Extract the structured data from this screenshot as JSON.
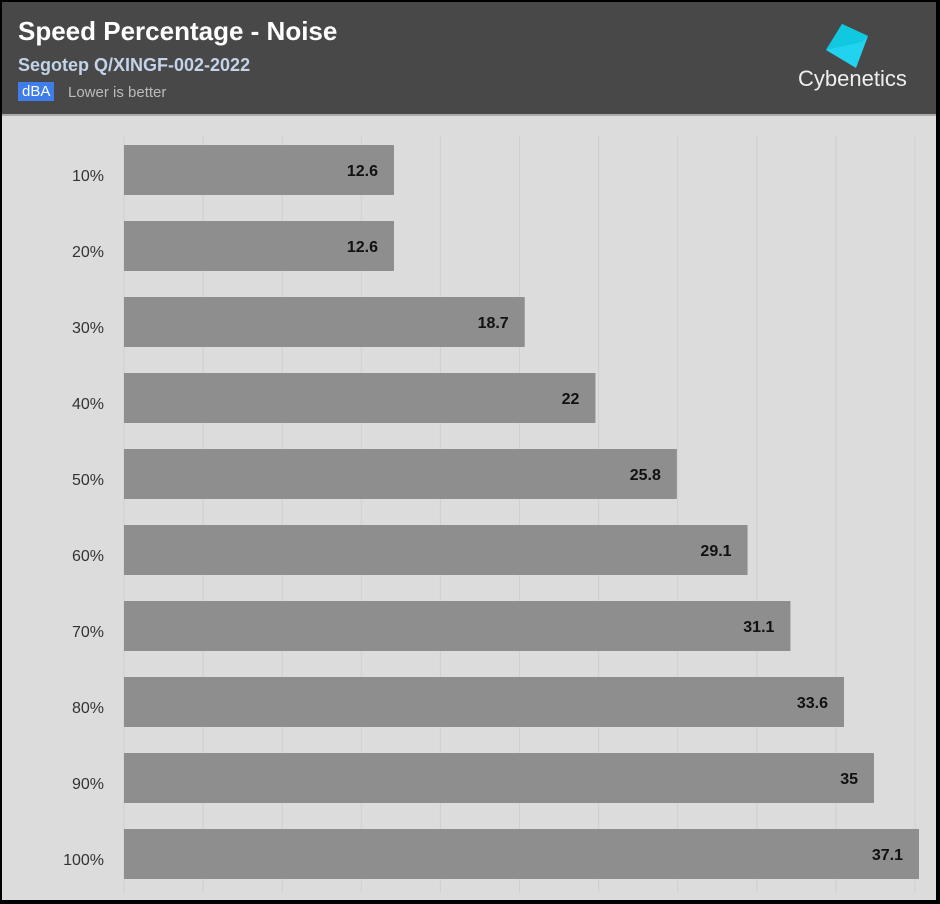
{
  "header": {
    "title": "Speed Percentage - Noise",
    "subtitle": "Segotep Q/XINGF-002-2022",
    "unit_badge": "dBA",
    "note": "Lower is better",
    "logo_text": "Cybenetics"
  },
  "colors": {
    "header_bg": "#484848",
    "plot_bg": "#dcdcdc",
    "bar": "#8e8e8e",
    "unit_badge": "#3f7ee8",
    "logo": "#22d3f0"
  },
  "chart_data": {
    "type": "bar",
    "orientation": "horizontal",
    "title": "Speed Percentage - Noise",
    "subtitle": "Segotep Q/XINGF-002-2022",
    "unit": "dBA",
    "categories": [
      "10%",
      "20%",
      "30%",
      "40%",
      "50%",
      "60%",
      "70%",
      "80%",
      "90%",
      "100%"
    ],
    "values": [
      12.6,
      12.6,
      18.7,
      22,
      25.8,
      29.1,
      31.1,
      33.6,
      35,
      37.1
    ],
    "value_labels": [
      "12.6",
      "12.6",
      "18.7",
      "22",
      "25.8",
      "29.1",
      "31.1",
      "33.6",
      "35",
      "37.1"
    ],
    "xlim": [
      0,
      37.1
    ],
    "grid": true,
    "legend": "none"
  }
}
